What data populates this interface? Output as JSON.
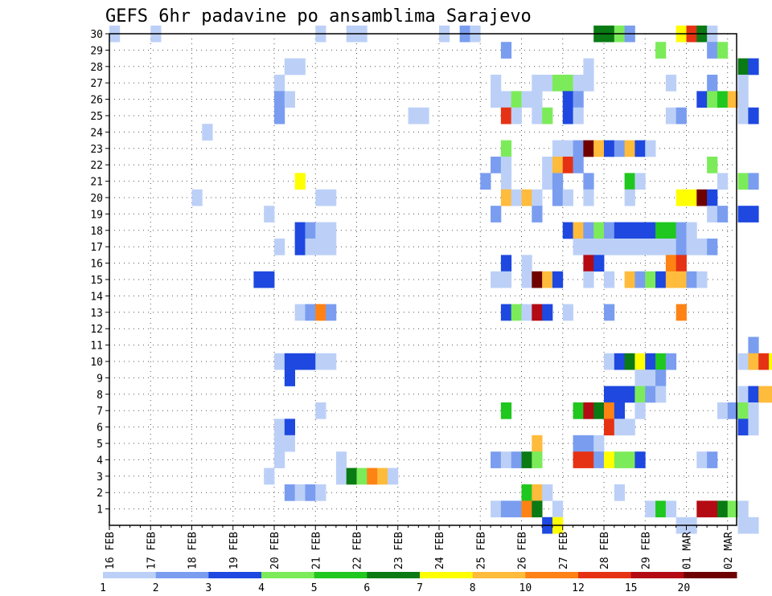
{
  "chart_data": {
    "type": "heatmap",
    "title": "GEFS 6hr padavine po ansamblima Sarajevo",
    "xlabel": "",
    "ylabel": "",
    "x_ticks": [
      "16 FEB",
      "17 FEB",
      "18 FEB",
      "19 FEB",
      "20 FEB",
      "21 FEB",
      "22 FEB",
      "23 FEB",
      "24 FEB",
      "25 FEB",
      "26 FEB",
      "27 FEB",
      "28 FEB",
      "29 FEB",
      "01 MAR",
      "02 MAR"
    ],
    "y_ticks": [
      1,
      2,
      3,
      4,
      5,
      6,
      7,
      8,
      9,
      10,
      11,
      12,
      13,
      14,
      15,
      16,
      17,
      18,
      19,
      20,
      21,
      22,
      23,
      24,
      25,
      26,
      27,
      28,
      29,
      30
    ],
    "time_step_hours": 6,
    "grid": true,
    "colorbar": {
      "labels": [
        "1",
        "2",
        "3",
        "4",
        "5",
        "6",
        "7",
        "8",
        "10",
        "12",
        "15",
        "20"
      ],
      "colors": [
        "#bcd0f7",
        "#7a9df0",
        "#1e48e0",
        "#7ceb5a",
        "#1fc71f",
        "#0a7a14",
        "#ffff00",
        "#ffbb3c",
        "#ff8214",
        "#e63214",
        "#b40a14",
        "#6e0000"
      ]
    },
    "cells": [
      [
        30,
        16,
        0
      ],
      [
        30,
        17,
        0
      ],
      [
        30,
        21,
        0
      ],
      [
        30,
        21.75,
        0
      ],
      [
        30,
        22,
        0
      ],
      [
        30,
        24,
        0
      ],
      [
        30,
        24.5,
        1
      ],
      [
        30,
        24.75,
        0
      ],
      [
        30,
        27.75,
        5
      ],
      [
        30,
        28,
        5
      ],
      [
        30,
        28.25,
        3
      ],
      [
        30,
        28.5,
        1
      ],
      [
        30,
        29.75,
        6
      ],
      [
        30,
        30,
        9
      ],
      [
        30,
        30.25,
        5
      ],
      [
        30,
        30.5,
        0
      ],
      [
        29,
        25.5,
        1
      ],
      [
        29,
        29.25,
        3
      ],
      [
        29,
        30.5,
        1
      ],
      [
        29,
        30.75,
        3
      ],
      [
        28,
        20.25,
        0
      ],
      [
        28,
        20.5,
        0
      ],
      [
        28,
        27.5,
        0
      ],
      [
        28,
        31.25,
        5
      ],
      [
        28,
        31.5,
        2
      ],
      [
        27,
        20,
        0
      ],
      [
        27,
        25.25,
        0
      ],
      [
        27,
        26.25,
        0
      ],
      [
        27,
        26.5,
        0
      ],
      [
        27,
        26.75,
        3
      ],
      [
        27,
        27,
        3
      ],
      [
        27,
        27.25,
        0
      ],
      [
        27,
        27.5,
        0
      ],
      [
        27,
        29.5,
        0
      ],
      [
        27,
        30.5,
        1
      ],
      [
        27,
        31.25,
        0
      ],
      [
        26,
        20,
        1
      ],
      [
        26,
        20.25,
        0
      ],
      [
        26,
        25.25,
        0
      ],
      [
        26,
        25.5,
        0
      ],
      [
        26,
        25.75,
        3
      ],
      [
        26,
        26,
        0
      ],
      [
        26,
        26.25,
        0
      ],
      [
        26,
        27,
        2
      ],
      [
        26,
        27.25,
        1
      ],
      [
        26,
        30.25,
        2
      ],
      [
        26,
        30.5,
        3
      ],
      [
        26,
        30.75,
        4
      ],
      [
        26,
        31,
        7
      ],
      [
        26,
        31.25,
        0
      ],
      [
        25,
        20,
        1
      ],
      [
        25,
        23.25,
        0
      ],
      [
        25,
        23.5,
        0
      ],
      [
        25,
        25.5,
        9
      ],
      [
        25,
        25.75,
        0
      ],
      [
        25,
        26.25,
        0
      ],
      [
        25,
        26.5,
        3
      ],
      [
        25,
        27,
        2
      ],
      [
        25,
        27.25,
        0
      ],
      [
        25,
        29.5,
        0
      ],
      [
        25,
        29.75,
        1
      ],
      [
        25,
        31.25,
        0
      ],
      [
        25,
        31.5,
        2
      ],
      [
        24,
        18.25,
        0
      ],
      [
        23,
        25.5,
        3
      ],
      [
        23,
        26.75,
        0
      ],
      [
        23,
        27,
        0
      ],
      [
        23,
        27.25,
        1
      ],
      [
        23,
        27.5,
        11
      ],
      [
        23,
        27.75,
        7
      ],
      [
        23,
        28,
        2
      ],
      [
        23,
        28.25,
        1
      ],
      [
        23,
        28.5,
        7
      ],
      [
        23,
        28.75,
        2
      ],
      [
        23,
        29,
        0
      ],
      [
        22,
        25.25,
        1
      ],
      [
        22,
        25.5,
        0
      ],
      [
        22,
        26.5,
        0
      ],
      [
        22,
        26.75,
        7
      ],
      [
        22,
        27,
        9
      ],
      [
        22,
        27.25,
        1
      ],
      [
        22,
        30.5,
        3
      ],
      [
        21,
        20.5,
        6
      ],
      [
        21,
        25,
        1
      ],
      [
        21,
        25.5,
        0
      ],
      [
        21,
        26.5,
        0
      ],
      [
        21,
        26.75,
        1
      ],
      [
        21,
        27.5,
        1
      ],
      [
        21,
        28.5,
        4
      ],
      [
        21,
        28.75,
        0
      ],
      [
        21,
        30.75,
        0
      ],
      [
        21,
        31.25,
        3
      ],
      [
        21,
        31.5,
        1
      ],
      [
        20,
        18,
        0
      ],
      [
        20,
        21,
        0
      ],
      [
        20,
        21.25,
        0
      ],
      [
        20,
        25.5,
        7
      ],
      [
        20,
        25.75,
        0
      ],
      [
        20,
        26,
        7
      ],
      [
        20,
        26.25,
        0
      ],
      [
        20,
        26.75,
        1
      ],
      [
        20,
        27,
        0
      ],
      [
        20,
        27.5,
        0
      ],
      [
        20,
        28.5,
        0
      ],
      [
        20,
        29.75,
        6
      ],
      [
        20,
        30,
        6
      ],
      [
        20,
        30.25,
        11
      ],
      [
        20,
        30.5,
        2
      ],
      [
        19,
        19.75,
        0
      ],
      [
        19,
        25.25,
        1
      ],
      [
        19,
        26.25,
        1
      ],
      [
        19,
        30.5,
        0
      ],
      [
        19,
        30.75,
        1
      ],
      [
        19,
        31.25,
        2
      ],
      [
        19,
        31.5,
        2
      ],
      [
        18,
        20.5,
        2
      ],
      [
        18,
        20.75,
        1
      ],
      [
        18,
        21,
        0
      ],
      [
        18,
        21.25,
        0
      ],
      [
        18,
        27,
        2
      ],
      [
        18,
        27.25,
        7
      ],
      [
        18,
        27.5,
        1
      ],
      [
        18,
        27.75,
        3
      ],
      [
        18,
        28,
        1
      ],
      [
        18,
        28.25,
        2
      ],
      [
        18,
        28.5,
        2
      ],
      [
        18,
        28.75,
        2
      ],
      [
        18,
        29,
        2
      ],
      [
        18,
        29.25,
        4
      ],
      [
        18,
        29.5,
        4
      ],
      [
        18,
        29.75,
        1
      ],
      [
        18,
        30,
        0
      ],
      [
        17,
        20,
        0
      ],
      [
        17,
        20.5,
        2
      ],
      [
        17,
        20.75,
        0
      ],
      [
        17,
        21,
        0
      ],
      [
        17,
        21.25,
        0
      ],
      [
        17,
        27.25,
        0
      ],
      [
        17,
        27.5,
        0
      ],
      [
        17,
        27.75,
        0
      ],
      [
        17,
        28,
        0
      ],
      [
        17,
        28.25,
        0
      ],
      [
        17,
        28.5,
        0
      ],
      [
        17,
        28.75,
        0
      ],
      [
        17,
        29,
        0
      ],
      [
        17,
        29.25,
        0
      ],
      [
        17,
        29.5,
        0
      ],
      [
        17,
        29.75,
        1
      ],
      [
        17,
        30,
        0
      ],
      [
        17,
        30.25,
        0
      ],
      [
        17,
        30.5,
        1
      ],
      [
        16,
        25.5,
        2
      ],
      [
        16,
        26,
        0
      ],
      [
        16,
        27.5,
        10
      ],
      [
        16,
        27.75,
        2
      ],
      [
        16,
        29.5,
        8
      ],
      [
        16,
        29.75,
        9
      ],
      [
        15,
        19.5,
        2
      ],
      [
        15,
        19.75,
        2
      ],
      [
        15,
        25.25,
        0
      ],
      [
        15,
        25.5,
        0
      ],
      [
        15,
        26,
        0
      ],
      [
        15,
        26.25,
        11
      ],
      [
        15,
        26.5,
        7
      ],
      [
        15,
        26.75,
        2
      ],
      [
        15,
        27.5,
        0
      ],
      [
        15,
        28,
        0
      ],
      [
        15,
        28.5,
        7
      ],
      [
        15,
        28.75,
        1
      ],
      [
        15,
        29,
        3
      ],
      [
        15,
        29.25,
        2
      ],
      [
        15,
        29.5,
        7
      ],
      [
        15,
        29.75,
        7
      ],
      [
        15,
        30,
        1
      ],
      [
        15,
        30.25,
        0
      ],
      [
        14,
        null,
        null
      ],
      [
        13,
        20.5,
        0
      ],
      [
        13,
        20.75,
        1
      ],
      [
        13,
        21,
        8
      ],
      [
        13,
        21.25,
        1
      ],
      [
        13,
        25.5,
        2
      ],
      [
        13,
        25.75,
        3
      ],
      [
        13,
        26,
        0
      ],
      [
        13,
        26.25,
        10
      ],
      [
        13,
        26.5,
        2
      ],
      [
        13,
        27,
        0
      ],
      [
        13,
        28,
        1
      ],
      [
        13,
        29.75,
        8
      ],
      [
        11,
        31.5,
        1
      ],
      [
        10,
        20,
        0
      ],
      [
        10,
        20.25,
        2
      ],
      [
        10,
        20.5,
        2
      ],
      [
        10,
        20.75,
        2
      ],
      [
        10,
        21,
        0
      ],
      [
        10,
        21.25,
        0
      ],
      [
        10,
        28,
        0
      ],
      [
        10,
        28.25,
        2
      ],
      [
        10,
        28.5,
        5
      ],
      [
        10,
        28.75,
        6
      ],
      [
        10,
        29,
        2
      ],
      [
        10,
        29.25,
        4
      ],
      [
        10,
        29.5,
        1
      ],
      [
        10,
        31.25,
        0
      ],
      [
        10,
        31.5,
        7
      ],
      [
        10,
        31.75,
        9
      ],
      [
        10,
        32,
        6
      ],
      [
        9,
        20.25,
        2
      ],
      [
        9,
        28.75,
        0
      ],
      [
        9,
        29,
        0
      ],
      [
        9,
        29.25,
        1
      ],
      [
        8,
        28,
        2
      ],
      [
        8,
        28.25,
        2
      ],
      [
        8,
        28.5,
        2
      ],
      [
        8,
        28.75,
        3
      ],
      [
        8,
        29,
        1
      ],
      [
        8,
        29.25,
        0
      ],
      [
        8,
        31.25,
        0
      ],
      [
        8,
        31.5,
        2
      ],
      [
        8,
        31.75,
        7
      ],
      [
        8,
        32,
        7
      ],
      [
        7,
        21,
        0
      ],
      [
        7,
        25.5,
        4
      ],
      [
        7,
        27.25,
        4
      ],
      [
        7,
        27.5,
        10
      ],
      [
        7,
        27.75,
        5
      ],
      [
        7,
        28,
        8
      ],
      [
        7,
        28.25,
        2
      ],
      [
        7,
        28.75,
        0
      ],
      [
        7,
        30.75,
        0
      ],
      [
        7,
        31,
        1
      ],
      [
        7,
        31.25,
        3
      ],
      [
        7,
        31.5,
        0
      ],
      [
        6,
        20,
        0
      ],
      [
        6,
        20.25,
        2
      ],
      [
        6,
        28,
        9
      ],
      [
        6,
        28.25,
        0
      ],
      [
        6,
        28.5,
        0
      ],
      [
        6,
        31.25,
        2
      ],
      [
        6,
        31.5,
        0
      ],
      [
        5,
        20,
        0
      ],
      [
        5,
        20.25,
        0
      ],
      [
        5,
        26.25,
        7
      ],
      [
        5,
        27.25,
        1
      ],
      [
        5,
        27.5,
        1
      ],
      [
        5,
        27.75,
        0
      ],
      [
        4,
        20,
        0
      ],
      [
        4,
        21.5,
        0
      ],
      [
        4,
        25.25,
        1
      ],
      [
        4,
        25.5,
        0
      ],
      [
        4,
        25.75,
        1
      ],
      [
        4,
        26,
        5
      ],
      [
        4,
        26.25,
        3
      ],
      [
        4,
        27.25,
        9
      ],
      [
        4,
        27.5,
        9
      ],
      [
        4,
        27.75,
        1
      ],
      [
        4,
        28,
        6
      ],
      [
        4,
        28.25,
        3
      ],
      [
        4,
        28.5,
        3
      ],
      [
        4,
        28.75,
        2
      ],
      [
        4,
        30.25,
        0
      ],
      [
        4,
        30.5,
        1
      ],
      [
        3,
        19.75,
        0
      ],
      [
        3,
        21.5,
        0
      ],
      [
        3,
        21.75,
        5
      ],
      [
        3,
        22,
        3
      ],
      [
        3,
        22.25,
        8
      ],
      [
        3,
        22.5,
        7
      ],
      [
        3,
        22.75,
        0
      ],
      [
        2,
        20.25,
        1
      ],
      [
        2,
        20.5,
        0
      ],
      [
        2,
        20.75,
        1
      ],
      [
        2,
        21,
        0
      ],
      [
        2,
        26,
        4
      ],
      [
        2,
        26.25,
        7
      ],
      [
        2,
        26.5,
        0
      ],
      [
        2,
        28.25,
        0
      ],
      [
        1,
        25.25,
        0
      ],
      [
        1,
        25.5,
        1
      ],
      [
        1,
        25.75,
        1
      ],
      [
        1,
        26,
        8
      ],
      [
        1,
        26.25,
        5
      ],
      [
        1,
        26.75,
        0
      ],
      [
        1,
        29,
        0
      ],
      [
        1,
        29.25,
        4
      ],
      [
        1,
        29.5,
        0
      ],
      [
        1,
        30.25,
        10
      ],
      [
        1,
        30.5,
        10
      ],
      [
        1,
        30.75,
        5
      ],
      [
        1,
        31,
        3
      ],
      [
        1,
        31.25,
        0
      ],
      [
        0,
        26.5,
        2
      ],
      [
        0,
        26.75,
        6
      ],
      [
        0,
        29.75,
        0
      ],
      [
        0,
        30,
        0
      ],
      [
        0,
        31.25,
        0
      ],
      [
        0,
        31.5,
        0
      ]
    ]
  }
}
